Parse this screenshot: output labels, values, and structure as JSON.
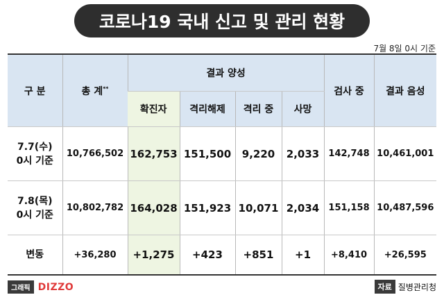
{
  "title": "코로나19 국내 신고 및 관리 현황",
  "date_note": "7월 8일 0시 기준",
  "headers": {
    "category": "구 분",
    "total": "총 계",
    "total_mark": "**",
    "positive_group": "결과 양성",
    "confirmed": "확진자",
    "released": "격리해제",
    "isolated": "격리 중",
    "deaths": "사망",
    "testing": "검사 중",
    "negative": "결과 음성"
  },
  "rows": [
    {
      "label_line1": "7.7(수)",
      "label_line2": "0시 기준",
      "total": "10,766,502",
      "confirmed": "162,753",
      "released": "151,500",
      "isolated": "9,220",
      "deaths": "2,033",
      "testing": "142,748",
      "negative": "10,461,001"
    },
    {
      "label_line1": "7.8(목)",
      "label_line2": "0시 기준",
      "total": "10,802,782",
      "confirmed": "164,028",
      "released": "151,923",
      "isolated": "10,071",
      "deaths": "2,034",
      "testing": "151,158",
      "negative": "10,487,596"
    }
  ],
  "change": {
    "label": "변동",
    "total": "+36,280",
    "confirmed": "+1,275",
    "released": "+423",
    "isolated": "+851",
    "deaths": "+1",
    "testing": "+8,410",
    "negative": "+26,595"
  },
  "footer": {
    "graphic_label": "그래픽",
    "brand": "DIZZO",
    "source_label": "자료",
    "source_value": "질병관리청"
  },
  "colors": {
    "header_bg": "#d9e5f2",
    "highlight_bg": "#eef5e2",
    "title_bg": "#2e2e2e",
    "brand": "#e03a3a"
  }
}
